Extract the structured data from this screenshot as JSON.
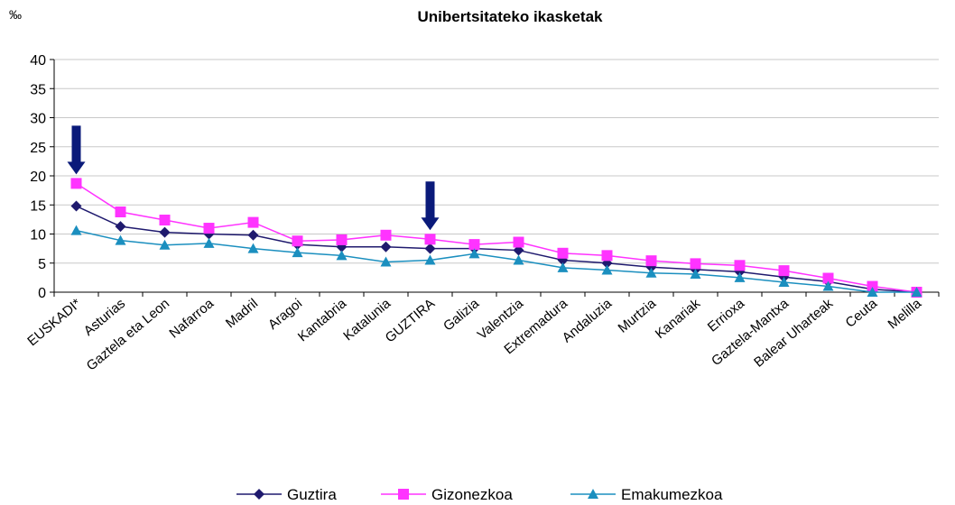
{
  "chart_data": {
    "type": "line",
    "title": "Unibertsitateko ikasketak",
    "unit": "‰",
    "categories": [
      "EUSKADI*",
      "Asturias",
      "Gaztela eta Leon",
      "Nafarroa",
      "Madril",
      "Aragoi",
      "Kantabria",
      "Katalunia",
      "GUZTIRA",
      "Galizia",
      "Valentzia",
      "Extremadura",
      "Andaluzia",
      "Murtzia",
      "Kanariak",
      "Errioxa",
      "Gaztela-Mantxa",
      "Balear Uharteak",
      "Ceuta",
      "Melilla"
    ],
    "ylim": [
      0,
      40
    ],
    "yticks": [
      0,
      5,
      10,
      15,
      20,
      25,
      30,
      35,
      40
    ],
    "grid": true,
    "legend_position": "bottom",
    "highlighted_categories": [
      "EUSKADI*",
      "GUZTIRA"
    ],
    "series": [
      {
        "name": "Guztira",
        "color": "#1f1a6e",
        "marker": "diamond",
        "values": [
          14.8,
          11.3,
          10.3,
          10.0,
          9.8,
          8.2,
          7.8,
          7.8,
          7.5,
          7.5,
          7.2,
          5.5,
          5.0,
          4.3,
          3.9,
          3.5,
          2.6,
          1.8,
          0.5,
          0.0
        ]
      },
      {
        "name": "Gizonezkoa",
        "color": "#ff33ff",
        "marker": "square",
        "values": [
          18.7,
          13.8,
          12.4,
          11.0,
          12.0,
          8.8,
          9.0,
          9.8,
          9.1,
          8.2,
          8.6,
          6.7,
          6.3,
          5.4,
          4.9,
          4.6,
          3.7,
          2.4,
          1.0,
          0.0
        ]
      },
      {
        "name": "Emakumezkoa",
        "color": "#1b8fbf",
        "marker": "triangle",
        "values": [
          10.6,
          8.9,
          8.1,
          8.4,
          7.5,
          6.8,
          6.3,
          5.2,
          5.5,
          6.6,
          5.5,
          4.2,
          3.8,
          3.3,
          3.1,
          2.5,
          1.7,
          1.0,
          0.0,
          0.0
        ]
      }
    ]
  },
  "arrow_color": "#0a1a7a",
  "grid_color": "#c8c8c8"
}
